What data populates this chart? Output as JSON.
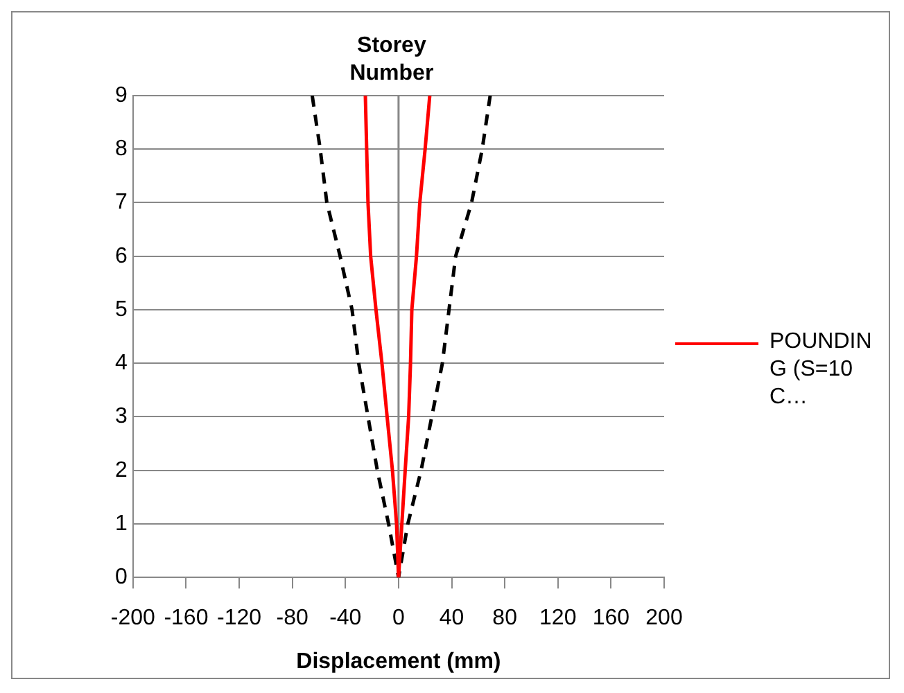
{
  "chart_data": {
    "type": "line",
    "xlabel": "Displacement (mm)",
    "ylabel": "Storey Number",
    "xlim": [
      -200,
      200
    ],
    "xticks": [
      -200,
      -160,
      -120,
      -80,
      -40,
      0,
      40,
      80,
      120,
      160,
      200
    ],
    "ylim": [
      0,
      9
    ],
    "yticks": [
      0,
      1,
      2,
      3,
      4,
      5,
      6,
      7,
      8,
      9
    ],
    "grid": "y",
    "legend": "right",
    "marker": "none",
    "series": [
      {
        "name": "POUNDING (S=10C…",
        "color": "#ff0000",
        "line_style": "solid",
        "x": [
          -25,
          -24,
          -23,
          -21,
          -17,
          -12.5,
          -8.6,
          -4.6,
          -1.5,
          0,
          2.5,
          5,
          7.6,
          9,
          10,
          13.5,
          16,
          20,
          23.5
        ],
        "values": [
          9,
          8,
          7,
          6,
          5,
          4,
          3,
          2,
          1,
          0,
          1,
          2,
          3,
          4,
          5,
          6,
          7,
          8,
          9
        ]
      },
      {
        "color": "#000000",
        "line_style": "dashed",
        "x": [
          -65,
          -59,
          -54,
          -44,
          -35,
          -30,
          -23,
          -16,
          -7.5,
          0,
          7,
          17,
          25,
          33,
          38,
          43,
          55,
          63,
          69
        ],
        "values": [
          9,
          8,
          7,
          6,
          5,
          4,
          3,
          2,
          1,
          0,
          1,
          2,
          3,
          4,
          5,
          6,
          7,
          8,
          9
        ]
      }
    ]
  }
}
